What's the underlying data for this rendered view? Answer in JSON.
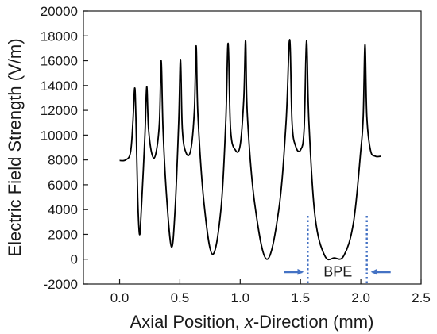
{
  "chart_data": {
    "type": "line",
    "title": "",
    "xlabel_prefix": "Axial Position, ",
    "xlabel_italic": "x",
    "xlabel_suffix": "-Direction (mm)",
    "ylabel": "Electric Field Strength (V/m)",
    "xlim": [
      -0.3,
      2.5
    ],
    "ylim": [
      -2000,
      20000
    ],
    "x_ticks": [
      0.0,
      0.5,
      1.0,
      1.5,
      2.0,
      2.5
    ],
    "x_tick_labels": [
      "0.0",
      "0.5",
      "1.0",
      "1.5",
      "2.0",
      "2.5"
    ],
    "y_ticks": [
      -2000,
      0,
      2000,
      4000,
      6000,
      8000,
      10000,
      12000,
      14000,
      16000,
      18000,
      20000
    ],
    "y_tick_labels": [
      "-2000",
      "0",
      "2000",
      "4000",
      "6000",
      "8000",
      "10000",
      "12000",
      "14000",
      "16000",
      "18000",
      "20000"
    ],
    "grid": false,
    "line_color": "#000000",
    "series": [
      {
        "values": [
          [
            0.0,
            7950
          ],
          [
            0.05,
            8000
          ],
          [
            0.09,
            8600
          ],
          [
            0.11,
            11000
          ],
          [
            0.125,
            13800
          ],
          [
            0.135,
            11500
          ],
          [
            0.15,
            5000
          ],
          [
            0.165,
            2000
          ],
          [
            0.18,
            4000
          ],
          [
            0.21,
            10000
          ],
          [
            0.225,
            13900
          ],
          [
            0.24,
            10500
          ],
          [
            0.27,
            8400
          ],
          [
            0.3,
            8500
          ],
          [
            0.33,
            11000
          ],
          [
            0.345,
            16000
          ],
          [
            0.36,
            10500
          ],
          [
            0.39,
            5000
          ],
          [
            0.43,
            1000
          ],
          [
            0.46,
            4000
          ],
          [
            0.49,
            11000
          ],
          [
            0.505,
            16100
          ],
          [
            0.52,
            10500
          ],
          [
            0.55,
            8600
          ],
          [
            0.59,
            8800
          ],
          [
            0.62,
            12000
          ],
          [
            0.635,
            17200
          ],
          [
            0.65,
            11500
          ],
          [
            0.7,
            4500
          ],
          [
            0.77,
            400
          ],
          [
            0.84,
            4000
          ],
          [
            0.88,
            11000
          ],
          [
            0.9,
            17400
          ],
          [
            0.92,
            10500
          ],
          [
            0.96,
            8800
          ],
          [
            1.0,
            9200
          ],
          [
            1.03,
            13000
          ],
          [
            1.045,
            17600
          ],
          [
            1.06,
            11500
          ],
          [
            1.12,
            4500
          ],
          [
            1.22,
            0
          ],
          [
            1.32,
            4000
          ],
          [
            1.38,
            11000
          ],
          [
            1.41,
            17700
          ],
          [
            1.43,
            11000
          ],
          [
            1.46,
            9100
          ],
          [
            1.5,
            8800
          ],
          [
            1.53,
            10500
          ],
          [
            1.55,
            17600
          ],
          [
            1.57,
            11000
          ],
          [
            1.62,
            3500
          ],
          [
            1.7,
            300
          ],
          [
            1.78,
            100
          ],
          [
            1.86,
            300
          ],
          [
            1.94,
            3000
          ],
          [
            2.0,
            8800
          ],
          [
            2.02,
            11500
          ],
          [
            2.035,
            17300
          ],
          [
            2.05,
            11500
          ],
          [
            2.08,
            8800
          ],
          [
            2.12,
            8300
          ],
          [
            2.17,
            8300
          ]
        ]
      }
    ],
    "annotations": [
      {
        "text": "BPE",
        "x_center": 1.81,
        "y": 0
      },
      {
        "marker": "dashed-line",
        "x": 1.56
      },
      {
        "marker": "dashed-line",
        "x": 2.05
      }
    ],
    "annotation_color": "#4472C4"
  }
}
